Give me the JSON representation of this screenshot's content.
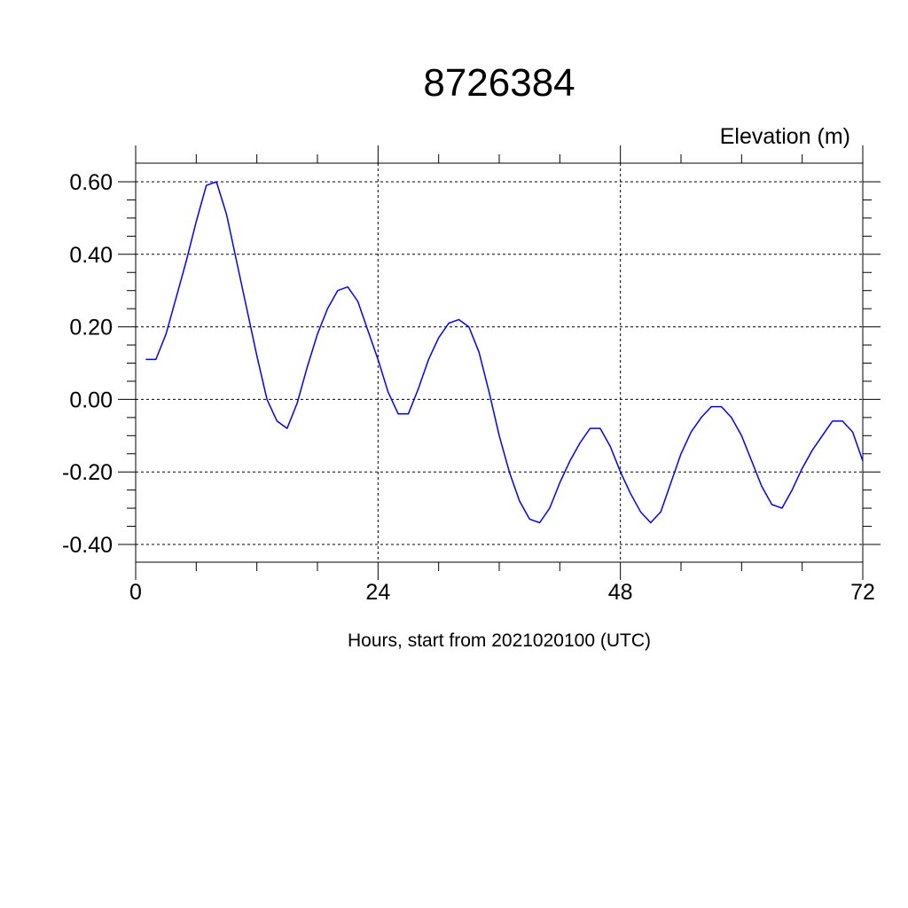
{
  "chart_data": {
    "type": "line",
    "title": "8726384",
    "subtitle": "Elevation (m)",
    "xlabel": "Hours, start from 2021020100 (UTC)",
    "ylabel": "",
    "xlim": [
      0,
      72
    ],
    "ylim": [
      -0.4,
      0.65
    ],
    "xticks": [
      0,
      24,
      48,
      72
    ],
    "xtick_labels": [
      "0",
      "24",
      "48",
      "72"
    ],
    "yticks": [
      -0.4,
      -0.2,
      0.0,
      0.2,
      0.4,
      0.6
    ],
    "ytick_labels": [
      "-0.40",
      "-0.20",
      "0.00",
      "0.20",
      "0.40",
      "0.60"
    ],
    "grid": true,
    "series_color": "#0000ff",
    "x": [
      1,
      2,
      3,
      4,
      5,
      6,
      7,
      8,
      9,
      10,
      11,
      12,
      13,
      14,
      15,
      16,
      17,
      18,
      19,
      20,
      21,
      22,
      23,
      24,
      25,
      26,
      27,
      28,
      29,
      30,
      31,
      32,
      33,
      34,
      35,
      36,
      37,
      38,
      39,
      40,
      41,
      42,
      43,
      44,
      45,
      46,
      47,
      48,
      49,
      50,
      51,
      52,
      53,
      54,
      55,
      56,
      57,
      58,
      59,
      60,
      61,
      62,
      63,
      64,
      65,
      66,
      67,
      68,
      69,
      70,
      71,
      72
    ],
    "y": [
      0.11,
      0.11,
      0.18,
      0.28,
      0.38,
      0.49,
      0.59,
      0.6,
      0.51,
      0.38,
      0.25,
      0.12,
      0.0,
      -0.06,
      -0.08,
      -0.01,
      0.09,
      0.18,
      0.25,
      0.3,
      0.31,
      0.27,
      0.19,
      0.11,
      0.02,
      -0.04,
      -0.04,
      0.03,
      0.11,
      0.17,
      0.21,
      0.22,
      0.2,
      0.13,
      0.02,
      -0.1,
      -0.2,
      -0.28,
      -0.33,
      -0.34,
      -0.3,
      -0.23,
      -0.17,
      -0.12,
      -0.08,
      -0.08,
      -0.13,
      -0.2,
      -0.26,
      -0.31,
      -0.34,
      -0.31,
      -0.23,
      -0.15,
      -0.09,
      -0.05,
      -0.02,
      -0.02,
      -0.05,
      -0.1,
      -0.17,
      -0.24,
      -0.29,
      -0.3,
      -0.25,
      -0.19,
      -0.14,
      -0.1,
      -0.06,
      -0.06,
      -0.09,
      -0.17
    ]
  }
}
